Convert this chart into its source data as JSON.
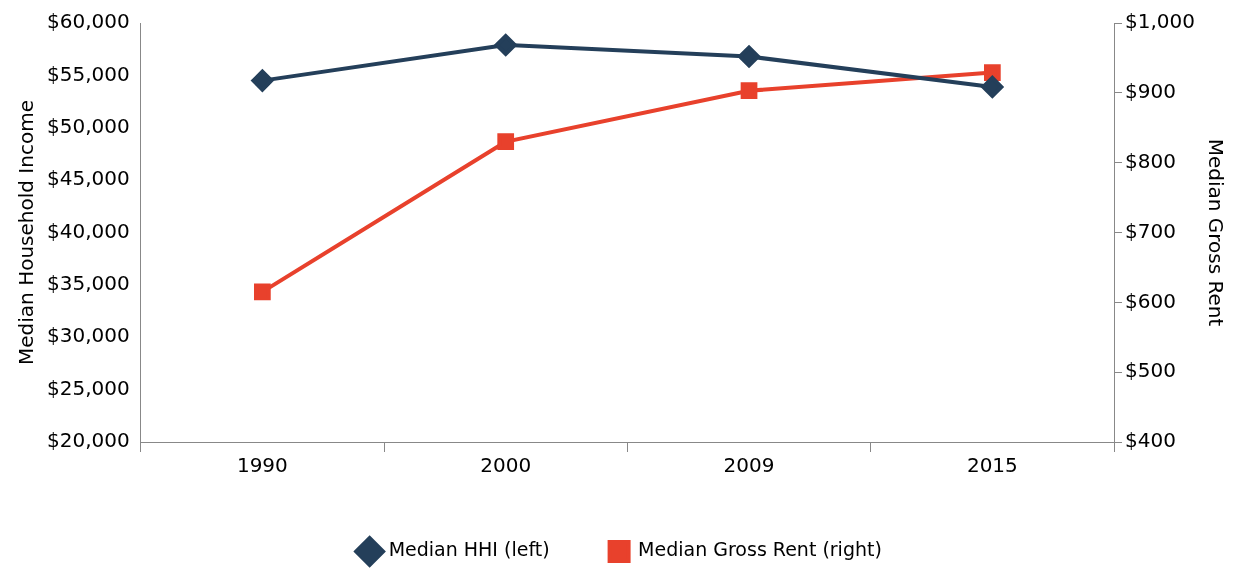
{
  "chart_data": {
    "type": "line",
    "categories": [
      "1990",
      "2000",
      "2009",
      "2015"
    ],
    "ylabel": "Median Household Income",
    "y2label": "Median Gross Rent",
    "ylim": [
      20000,
      60000
    ],
    "yticks": [
      {
        "value": 20000,
        "label": "$20,000"
      },
      {
        "value": 25000,
        "label": "$25,000"
      },
      {
        "value": 30000,
        "label": "$30,000"
      },
      {
        "value": 35000,
        "label": "$35,000"
      },
      {
        "value": 40000,
        "label": "$40,000"
      },
      {
        "value": 45000,
        "label": "$45,000"
      },
      {
        "value": 50000,
        "label": "$50,000"
      },
      {
        "value": 55000,
        "label": "$55,000"
      },
      {
        "value": 60000,
        "label": "$60,000"
      }
    ],
    "y2lim": [
      400,
      1000
    ],
    "y2ticks": [
      {
        "value": 400,
        "label": "$400"
      },
      {
        "value": 500,
        "label": "$500"
      },
      {
        "value": 600,
        "label": "$600"
      },
      {
        "value": 700,
        "label": "$700"
      },
      {
        "value": 800,
        "label": "$800"
      },
      {
        "value": 900,
        "label": "$900"
      },
      {
        "value": 1000,
        "label": "$1,000"
      }
    ],
    "series": [
      {
        "name": "Median HHI (left)",
        "color": "#243f5a",
        "marker": "diamond",
        "values": [
          54500,
          57900,
          56800,
          53900
        ]
      },
      {
        "name": "Median Gross Rent (right)",
        "color": "#e8412c",
        "marker": "square",
        "axis": "y2",
        "values": [
          615,
          830,
          903,
          929
        ]
      }
    ],
    "grid": false,
    "legend": "bottom",
    "line_style": "solid"
  }
}
